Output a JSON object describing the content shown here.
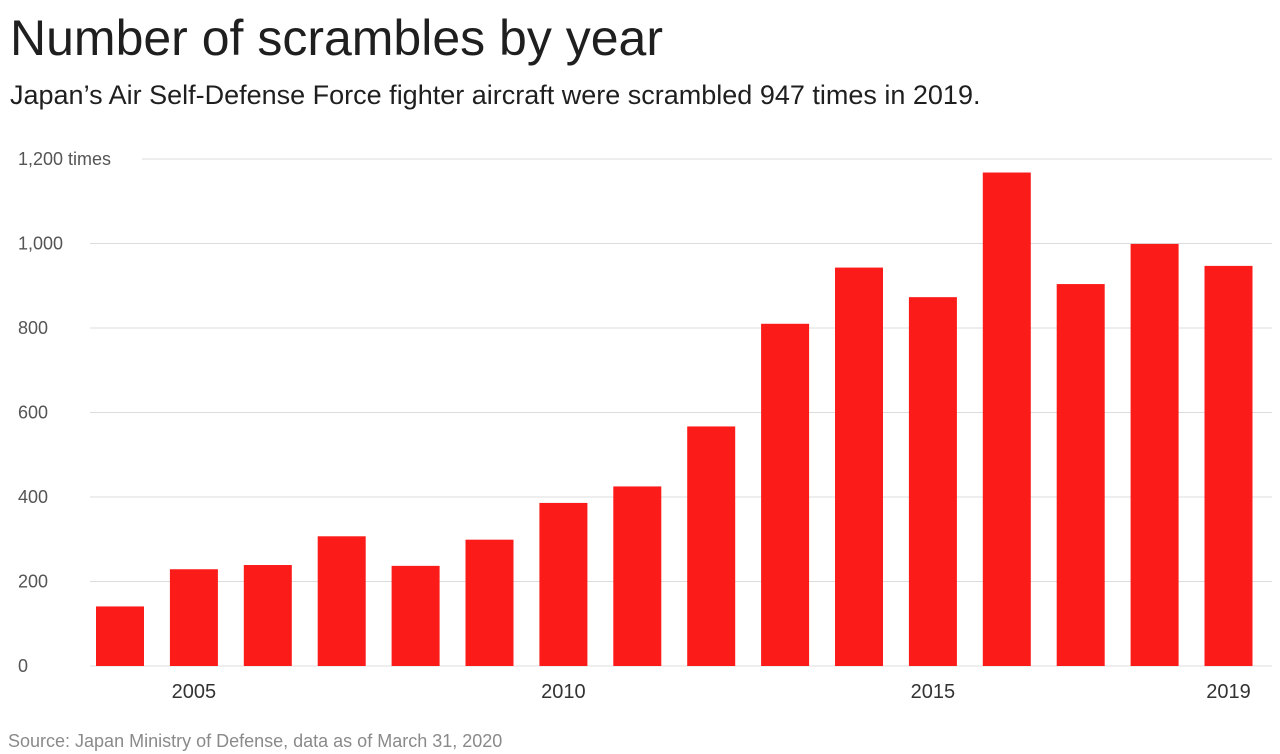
{
  "title": "Number of scrambles by year",
  "subtitle": "Japan’s Air Self-Defense Force fighter aircraft were scrambled 947 times in 2019.",
  "source": "Source: Japan Ministry of Defense, data as of March 31, 2020",
  "chart_data": {
    "type": "bar",
    "categories": [
      "2004",
      "2005",
      "2006",
      "2007",
      "2008",
      "2009",
      "2010",
      "2011",
      "2012",
      "2013",
      "2014",
      "2015",
      "2016",
      "2017",
      "2018",
      "2019"
    ],
    "values": [
      141,
      229,
      239,
      307,
      237,
      299,
      386,
      425,
      567,
      810,
      943,
      873,
      1168,
      904,
      999,
      947
    ],
    "ylim": [
      0,
      1200
    ],
    "yticks": [
      0,
      200,
      400,
      600,
      800,
      1000,
      1200
    ],
    "ytick_labels": [
      "0",
      "200",
      "400",
      "600",
      "800",
      "1,000",
      "1,200 times"
    ],
    "xtick_labels": [
      "2005",
      "2010",
      "2015",
      "2019"
    ],
    "bar_color": "#fb1b19",
    "grid": true,
    "legend": "none"
  }
}
